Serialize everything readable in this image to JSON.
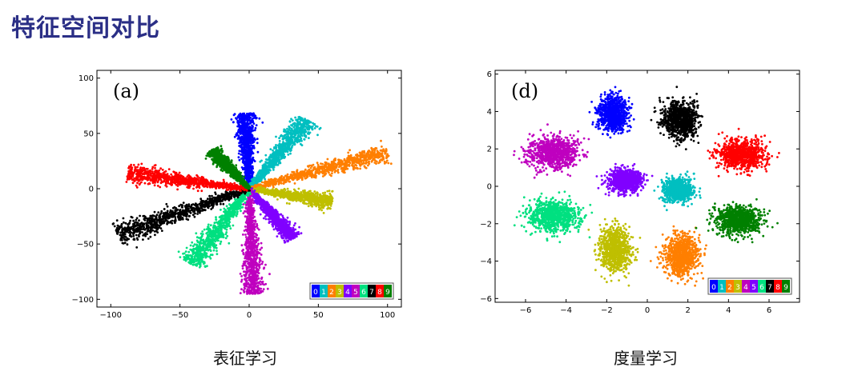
{
  "page": {
    "title": "特征空间对比"
  },
  "captions": {
    "left": "表征学习",
    "right": "度量学习"
  },
  "legend_digits": [
    "0",
    "1",
    "2",
    "3",
    "4",
    "5",
    "6",
    "7",
    "8",
    "9"
  ],
  "chart_data": [
    {
      "type": "scatter",
      "panel_label": "(a)",
      "xlim": [
        -110,
        110
      ],
      "ylim": [
        -107,
        107
      ],
      "xticks": [
        -100,
        -50,
        0,
        50,
        100
      ],
      "yticks": [
        -100,
        -50,
        0,
        50,
        100
      ],
      "xtick_labels": [
        "−100",
        "−50",
        "0",
        "50",
        "100"
      ],
      "ytick_labels": [
        "−100",
        "−50",
        "0",
        "50",
        "100"
      ],
      "grid": false,
      "legend": "bottom-right",
      "series": [
        {
          "name": "0",
          "color": "#0000ff",
          "shape": "ray",
          "from": [
            0,
            0
          ],
          "to": [
            -3,
            68
          ],
          "width": 9
        },
        {
          "name": "1",
          "color": "#00bfc0",
          "shape": "ray",
          "from": [
            0,
            0
          ],
          "to": [
            42,
            62
          ],
          "width": 11
        },
        {
          "name": "2",
          "color": "#ff7f00",
          "shape": "ray",
          "from": [
            0,
            0
          ],
          "to": [
            100,
            33
          ],
          "width": 10
        },
        {
          "name": "3",
          "color": "#bfbf00",
          "shape": "ray",
          "from": [
            0,
            0
          ],
          "to": [
            60,
            -12
          ],
          "width": 9
        },
        {
          "name": "4",
          "color": "#8000ff",
          "shape": "ray",
          "from": [
            0,
            0
          ],
          "to": [
            32,
            -45
          ],
          "width": 8
        },
        {
          "name": "5",
          "color": "#bf00bf",
          "shape": "ray",
          "from": [
            0,
            0
          ],
          "to": [
            3,
            -95
          ],
          "width": 10
        },
        {
          "name": "6",
          "color": "#00e080",
          "shape": "ray",
          "from": [
            0,
            0
          ],
          "to": [
            -42,
            -68
          ],
          "width": 12
        },
        {
          "name": "7",
          "color": "#000000",
          "shape": "ray",
          "from": [
            0,
            0
          ],
          "to": [
            -95,
            -42
          ],
          "width": 12
        },
        {
          "name": "8",
          "color": "#ff0000",
          "shape": "ray",
          "from": [
            0,
            0
          ],
          "to": [
            -88,
            14
          ],
          "width": 10
        },
        {
          "name": "9",
          "color": "#008000",
          "shape": "ray",
          "from": [
            0,
            0
          ],
          "to": [
            -27,
            35
          ],
          "width": 7
        }
      ]
    },
    {
      "type": "scatter",
      "panel_label": "(d)",
      "xlim": [
        -7.5,
        7.5
      ],
      "ylim": [
        -6.2,
        6.2
      ],
      "xticks": [
        -6,
        -4,
        -2,
        0,
        2,
        4,
        6
      ],
      "yticks": [
        -6,
        -4,
        -2,
        0,
        2,
        4,
        6
      ],
      "xtick_labels": [
        "−6",
        "−4",
        "−2",
        "0",
        "2",
        "4",
        "6"
      ],
      "ytick_labels": [
        "−6",
        "−4",
        "−2",
        "0",
        "2",
        "4",
        "6"
      ],
      "grid": false,
      "legend": "bottom-right",
      "series": [
        {
          "name": "0",
          "color": "#0000ff",
          "shape": "blob",
          "center": [
            -1.7,
            3.9
          ],
          "radius": [
            0.9,
            1.2
          ]
        },
        {
          "name": "1",
          "color": "#00bfc0",
          "shape": "blob",
          "center": [
            1.5,
            -0.2
          ],
          "radius": [
            0.9,
            0.8
          ]
        },
        {
          "name": "2",
          "color": "#ff7f00",
          "shape": "blob",
          "center": [
            1.7,
            -3.7
          ],
          "radius": [
            1.1,
            1.5
          ]
        },
        {
          "name": "3",
          "color": "#bfbf00",
          "shape": "blob",
          "center": [
            -1.6,
            -3.4
          ],
          "radius": [
            1.0,
            1.5
          ]
        },
        {
          "name": "4",
          "color": "#bf00bf",
          "shape": "blob",
          "center": [
            -4.6,
            1.8
          ],
          "radius": [
            1.6,
            1.1
          ]
        },
        {
          "name": "5",
          "color": "#8000ff",
          "shape": "blob",
          "center": [
            -1.1,
            0.3
          ],
          "radius": [
            1.1,
            0.8
          ]
        },
        {
          "name": "6",
          "color": "#00e080",
          "shape": "blob",
          "center": [
            -4.6,
            -1.6
          ],
          "radius": [
            1.6,
            1.1
          ]
        },
        {
          "name": "7",
          "color": "#000000",
          "shape": "blob",
          "center": [
            1.6,
            3.6
          ],
          "radius": [
            1.1,
            1.3
          ]
        },
        {
          "name": "8",
          "color": "#ff0000",
          "shape": "blob",
          "center": [
            4.6,
            1.7
          ],
          "radius": [
            1.5,
            1.0
          ]
        },
        {
          "name": "9",
          "color": "#008000",
          "shape": "blob",
          "center": [
            4.5,
            -1.8
          ],
          "radius": [
            1.5,
            1.0
          ]
        }
      ]
    }
  ]
}
